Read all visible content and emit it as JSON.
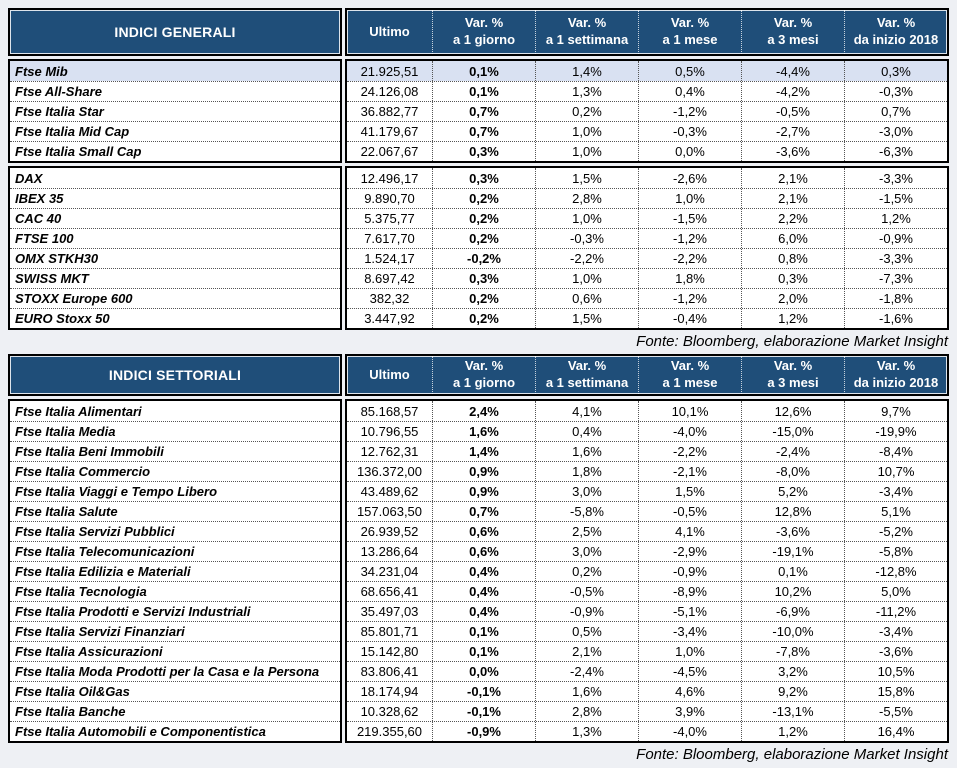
{
  "colors": {
    "header_bg": "#1F4E79",
    "header_text": "#FFFFFF",
    "highlight_row_bg": "#D9E1F2",
    "border": "#000000",
    "page_bg": "#EEF0F4"
  },
  "column_headers": {
    "ultimo": "Ultimo",
    "variations": [
      {
        "line1": "Var. %",
        "line2": "a 1 giorno"
      },
      {
        "line1": "Var. %",
        "line2": "a 1 settimana"
      },
      {
        "line1": "Var. %",
        "line2": "a 1 mese"
      },
      {
        "line1": "Var. %",
        "line2": "a 3 mesi"
      },
      {
        "line1": "Var. %",
        "line2": "da inizio 2018"
      }
    ]
  },
  "tables": [
    {
      "title": "INDICI GENERALI",
      "source": "Fonte: Bloomberg, elaborazione Market Insight",
      "groups": [
        {
          "rows": [
            {
              "name": "Ftse Mib",
              "highlight": true,
              "values": [
                "21.925,51",
                "0,1%",
                "1,4%",
                "0,5%",
                "-4,4%",
                "0,3%"
              ]
            },
            {
              "name": "Ftse All-Share",
              "values": [
                "24.126,08",
                "0,1%",
                "1,3%",
                "0,4%",
                "-4,2%",
                "-0,3%"
              ]
            },
            {
              "name": "Ftse Italia Star",
              "values": [
                "36.882,77",
                "0,7%",
                "0,2%",
                "-1,2%",
                "-0,5%",
                "0,7%"
              ]
            },
            {
              "name": "Ftse Italia Mid Cap",
              "values": [
                "41.179,67",
                "0,7%",
                "1,0%",
                "-0,3%",
                "-2,7%",
                "-3,0%"
              ]
            },
            {
              "name": "Ftse Italia Small Cap",
              "values": [
                "22.067,67",
                "0,3%",
                "1,0%",
                "0,0%",
                "-3,6%",
                "-6,3%"
              ]
            }
          ]
        },
        {
          "rows": [
            {
              "name": "DAX",
              "values": [
                "12.496,17",
                "0,3%",
                "1,5%",
                "-2,6%",
                "2,1%",
                "-3,3%"
              ]
            },
            {
              "name": "IBEX 35",
              "values": [
                "9.890,70",
                "0,2%",
                "2,8%",
                "1,0%",
                "2,1%",
                "-1,5%"
              ]
            },
            {
              "name": "CAC 40",
              "values": [
                "5.375,77",
                "0,2%",
                "1,0%",
                "-1,5%",
                "2,2%",
                "1,2%"
              ]
            },
            {
              "name": "FTSE 100",
              "values": [
                "7.617,70",
                "0,2%",
                "-0,3%",
                "-1,2%",
                "6,0%",
                "-0,9%"
              ]
            },
            {
              "name": "OMX STKH30",
              "values": [
                "1.524,17",
                "-0,2%",
                "-2,2%",
                "-2,2%",
                "0,8%",
                "-3,3%"
              ]
            },
            {
              "name": "SWISS MKT",
              "values": [
                "8.697,42",
                "0,3%",
                "1,0%",
                "1,8%",
                "0,3%",
                "-7,3%"
              ]
            },
            {
              "name": "STOXX Europe 600",
              "values": [
                "382,32",
                "0,2%",
                "0,6%",
                "-1,2%",
                "2,0%",
                "-1,8%"
              ]
            },
            {
              "name": "EURO Stoxx 50",
              "values": [
                "3.447,92",
                "0,2%",
                "1,5%",
                "-0,4%",
                "1,2%",
                "-1,6%"
              ]
            }
          ]
        }
      ]
    },
    {
      "title": "INDICI SETTORIALI",
      "source": "Fonte: Bloomberg, elaborazione Market Insight",
      "groups": [
        {
          "rows": [
            {
              "name": "Ftse Italia Alimentari",
              "values": [
                "85.168,57",
                "2,4%",
                "4,1%",
                "10,1%",
                "12,6%",
                "9,7%"
              ]
            },
            {
              "name": "Ftse Italia Media",
              "values": [
                "10.796,55",
                "1,6%",
                "0,4%",
                "-4,0%",
                "-15,0%",
                "-19,9%"
              ]
            },
            {
              "name": "Ftse Italia Beni Immobili",
              "values": [
                "12.762,31",
                "1,4%",
                "1,6%",
                "-2,2%",
                "-2,4%",
                "-8,4%"
              ]
            },
            {
              "name": "Ftse Italia Commercio",
              "values": [
                "136.372,00",
                "0,9%",
                "1,8%",
                "-2,1%",
                "-8,0%",
                "10,7%"
              ]
            },
            {
              "name": "Ftse Italia Viaggi e Tempo Libero",
              "values": [
                "43.489,62",
                "0,9%",
                "3,0%",
                "1,5%",
                "5,2%",
                "-3,4%"
              ]
            },
            {
              "name": "Ftse Italia Salute",
              "values": [
                "157.063,50",
                "0,7%",
                "-5,8%",
                "-0,5%",
                "12,8%",
                "5,1%"
              ]
            },
            {
              "name": "Ftse Italia Servizi Pubblici",
              "values": [
                "26.939,52",
                "0,6%",
                "2,5%",
                "4,1%",
                "-3,6%",
                "-5,2%"
              ]
            },
            {
              "name": "Ftse Italia Telecomunicazioni",
              "values": [
                "13.286,64",
                "0,6%",
                "3,0%",
                "-2,9%",
                "-19,1%",
                "-5,8%"
              ]
            },
            {
              "name": "Ftse Italia Edilizia e Materiali",
              "values": [
                "34.231,04",
                "0,4%",
                "0,2%",
                "-0,9%",
                "0,1%",
                "-12,8%"
              ]
            },
            {
              "name": "Ftse Italia Tecnologia",
              "values": [
                "68.656,41",
                "0,4%",
                "-0,5%",
                "-8,9%",
                "10,2%",
                "5,0%"
              ]
            },
            {
              "name": "Ftse Italia Prodotti e Servizi Industriali",
              "values": [
                "35.497,03",
                "0,4%",
                "-0,9%",
                "-5,1%",
                "-6,9%",
                "-11,2%"
              ]
            },
            {
              "name": "Ftse Italia Servizi Finanziari",
              "values": [
                "85.801,71",
                "0,1%",
                "0,5%",
                "-3,4%",
                "-10,0%",
                "-3,4%"
              ]
            },
            {
              "name": "Ftse Italia Assicurazioni",
              "values": [
                "15.142,80",
                "0,1%",
                "2,1%",
                "1,0%",
                "-7,8%",
                "-3,6%"
              ]
            },
            {
              "name": "Ftse Italia Moda Prodotti per la Casa e la Persona",
              "values": [
                "83.806,41",
                "0,0%",
                "-2,4%",
                "-4,5%",
                "3,2%",
                "10,5%"
              ]
            },
            {
              "name": "Ftse Italia Oil&Gas",
              "values": [
                "18.174,94",
                "-0,1%",
                "1,6%",
                "4,6%",
                "9,2%",
                "15,8%"
              ]
            },
            {
              "name": "Ftse Italia Banche",
              "values": [
                "10.328,62",
                "-0,1%",
                "2,8%",
                "3,9%",
                "-13,1%",
                "-5,5%"
              ]
            },
            {
              "name": "Ftse Italia Automobili e Componentistica",
              "values": [
                "219.355,60",
                "-0,9%",
                "1,3%",
                "-4,0%",
                "1,2%",
                "16,4%"
              ]
            }
          ]
        }
      ]
    }
  ]
}
